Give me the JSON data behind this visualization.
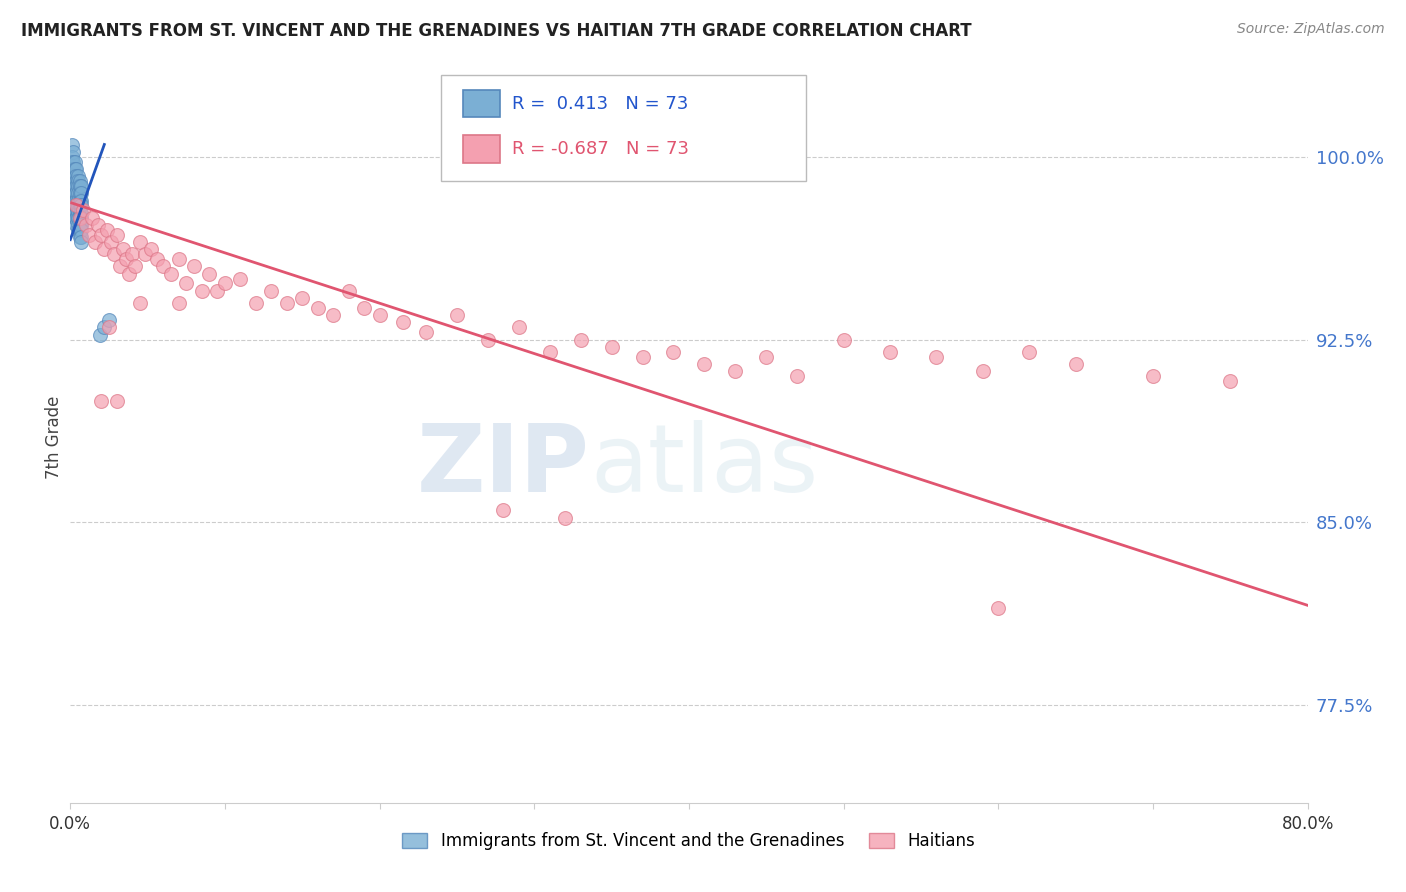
{
  "title": "IMMIGRANTS FROM ST. VINCENT AND THE GRENADINES VS HAITIAN 7TH GRADE CORRELATION CHART",
  "source": "Source: ZipAtlas.com",
  "ylabel": "7th Grade",
  "xlim": [
    0.0,
    0.8
  ],
  "ylim": [
    0.735,
    1.035
  ],
  "right_yticks": [
    1.0,
    0.925,
    0.85,
    0.775
  ],
  "right_yticklabels": [
    "100.0%",
    "92.5%",
    "85.0%",
    "77.5%"
  ],
  "grid_color": "#cccccc",
  "background_color": "#ffffff",
  "blue_color": "#7bafd4",
  "pink_color": "#f4a0b0",
  "blue_edge_color": "#5588bb",
  "pink_edge_color": "#dd7788",
  "blue_line_color": "#2255bb",
  "pink_line_color": "#e05570",
  "legend_R_blue": "0.413",
  "legend_N_blue": "73",
  "legend_R_pink": "-0.687",
  "legend_N_pink": "73",
  "legend_label_blue": "Immigrants from St. Vincent and the Grenadines",
  "legend_label_pink": "Haitians",
  "watermark_zip": "ZIP",
  "watermark_atlas": "atlas",
  "blue_scatter_x": [
    0.001,
    0.001,
    0.001,
    0.001,
    0.001,
    0.001,
    0.001,
    0.001,
    0.001,
    0.001,
    0.002,
    0.002,
    0.002,
    0.002,
    0.002,
    0.002,
    0.002,
    0.002,
    0.002,
    0.002,
    0.003,
    0.003,
    0.003,
    0.003,
    0.003,
    0.003,
    0.003,
    0.003,
    0.003,
    0.003,
    0.004,
    0.004,
    0.004,
    0.004,
    0.004,
    0.004,
    0.004,
    0.004,
    0.004,
    0.004,
    0.005,
    0.005,
    0.005,
    0.005,
    0.005,
    0.005,
    0.005,
    0.005,
    0.005,
    0.005,
    0.006,
    0.006,
    0.006,
    0.006,
    0.006,
    0.006,
    0.006,
    0.006,
    0.006,
    0.006,
    0.007,
    0.007,
    0.007,
    0.007,
    0.007,
    0.007,
    0.007,
    0.007,
    0.007,
    0.007,
    0.019,
    0.022,
    0.025
  ],
  "blue_scatter_y": [
    1.005,
    1.0,
    0.998,
    0.995,
    0.992,
    0.99,
    0.988,
    0.985,
    0.982,
    0.98,
    1.002,
    0.998,
    0.995,
    0.992,
    0.99,
    0.988,
    0.985,
    0.982,
    0.98,
    0.977,
    0.998,
    0.995,
    0.992,
    0.99,
    0.988,
    0.985,
    0.982,
    0.98,
    0.977,
    0.975,
    0.995,
    0.992,
    0.99,
    0.988,
    0.985,
    0.982,
    0.98,
    0.977,
    0.975,
    0.972,
    0.992,
    0.99,
    0.988,
    0.985,
    0.982,
    0.98,
    0.977,
    0.975,
    0.972,
    0.97,
    0.99,
    0.988,
    0.985,
    0.982,
    0.98,
    0.977,
    0.975,
    0.972,
    0.97,
    0.967,
    0.988,
    0.985,
    0.982,
    0.98,
    0.977,
    0.975,
    0.972,
    0.97,
    0.967,
    0.965,
    0.927,
    0.93,
    0.933
  ],
  "pink_scatter_x": [
    0.004,
    0.006,
    0.008,
    0.01,
    0.012,
    0.014,
    0.016,
    0.018,
    0.02,
    0.022,
    0.024,
    0.026,
    0.028,
    0.03,
    0.032,
    0.034,
    0.036,
    0.038,
    0.04,
    0.042,
    0.045,
    0.048,
    0.052,
    0.056,
    0.06,
    0.065,
    0.07,
    0.075,
    0.08,
    0.085,
    0.09,
    0.095,
    0.1,
    0.11,
    0.12,
    0.13,
    0.14,
    0.15,
    0.16,
    0.17,
    0.18,
    0.19,
    0.2,
    0.215,
    0.23,
    0.25,
    0.27,
    0.29,
    0.31,
    0.33,
    0.35,
    0.37,
    0.39,
    0.41,
    0.43,
    0.45,
    0.47,
    0.5,
    0.53,
    0.56,
    0.59,
    0.62,
    0.65,
    0.7,
    0.75,
    0.28,
    0.32,
    0.025,
    0.045,
    0.07,
    0.03,
    0.02,
    0.6
  ],
  "pink_scatter_y": [
    0.98,
    0.975,
    0.978,
    0.972,
    0.968,
    0.975,
    0.965,
    0.972,
    0.968,
    0.962,
    0.97,
    0.965,
    0.96,
    0.968,
    0.955,
    0.962,
    0.958,
    0.952,
    0.96,
    0.955,
    0.965,
    0.96,
    0.962,
    0.958,
    0.955,
    0.952,
    0.958,
    0.948,
    0.955,
    0.945,
    0.952,
    0.945,
    0.948,
    0.95,
    0.94,
    0.945,
    0.94,
    0.942,
    0.938,
    0.935,
    0.945,
    0.938,
    0.935,
    0.932,
    0.928,
    0.935,
    0.925,
    0.93,
    0.92,
    0.925,
    0.922,
    0.918,
    0.92,
    0.915,
    0.912,
    0.918,
    0.91,
    0.925,
    0.92,
    0.918,
    0.912,
    0.92,
    0.915,
    0.91,
    0.908,
    0.855,
    0.852,
    0.93,
    0.94,
    0.94,
    0.9,
    0.9,
    0.815
  ],
  "blue_trend_x": [
    0.0,
    0.022
  ],
  "blue_trend_y": [
    0.966,
    1.005
  ],
  "pink_trend_x": [
    0.001,
    0.8
  ],
  "pink_trend_y": [
    0.981,
    0.816
  ]
}
